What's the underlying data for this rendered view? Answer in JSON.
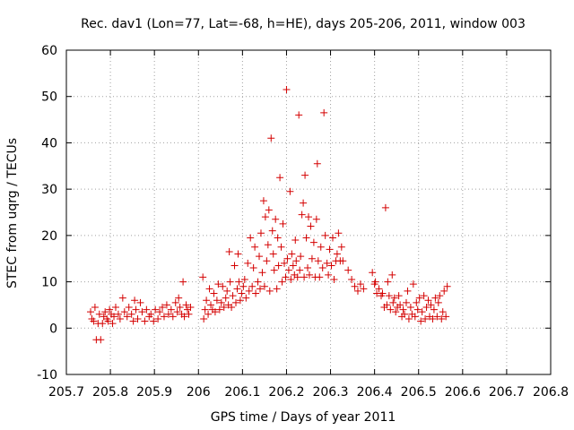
{
  "chart_data": {
    "type": "scatter",
    "title": "Rec. dav1 (Lon=77, Lat=-68, h=HE), days 205-206, 2011, window 003",
    "xlabel": "GPS time / Days of year 2011",
    "ylabel": "STEC from uqrg / TECUs",
    "xlim": [
      205.7,
      206.8
    ],
    "ylim": [
      -10,
      60
    ],
    "xticks": [
      205.7,
      205.8,
      205.9,
      206.0,
      206.1,
      206.2,
      206.3,
      206.4,
      206.5,
      206.6,
      206.7,
      206.8
    ],
    "xtick_labels": [
      "205.7",
      "205.8",
      "205.9",
      "206",
      "206.1",
      "206.2",
      "206.3",
      "206.4",
      "206.5",
      "206.6",
      "206.7",
      "206.8"
    ],
    "yticks": [
      -10,
      0,
      10,
      20,
      30,
      40,
      50,
      60
    ],
    "ytick_labels": [
      "-10",
      "0",
      "10",
      "20",
      "30",
      "40",
      "50",
      "60"
    ],
    "grid": true,
    "marker": "+",
    "color": "#d40000",
    "points": [
      [
        205.755,
        3.5
      ],
      [
        205.758,
        2.0
      ],
      [
        205.762,
        1.5
      ],
      [
        205.765,
        4.5
      ],
      [
        205.768,
        -2.5
      ],
      [
        205.772,
        1.0
      ],
      [
        205.775,
        3.0
      ],
      [
        205.778,
        -2.5
      ],
      [
        205.782,
        1.0
      ],
      [
        205.785,
        2.5
      ],
      [
        205.788,
        3.5
      ],
      [
        205.792,
        2.0
      ],
      [
        205.795,
        1.5
      ],
      [
        205.798,
        4.0
      ],
      [
        205.802,
        3.0
      ],
      [
        205.805,
        1.0
      ],
      [
        205.808,
        2.5
      ],
      [
        205.812,
        4.5
      ],
      [
        205.818,
        3.0
      ],
      [
        205.822,
        2.0
      ],
      [
        205.828,
        6.5
      ],
      [
        205.832,
        3.5
      ],
      [
        205.838,
        2.5
      ],
      [
        205.842,
        4.5
      ],
      [
        205.848,
        3.0
      ],
      [
        205.852,
        1.5
      ],
      [
        205.855,
        6.0
      ],
      [
        205.858,
        4.0
      ],
      [
        205.862,
        2.0
      ],
      [
        205.868,
        5.5
      ],
      [
        205.872,
        3.5
      ],
      [
        205.878,
        1.5
      ],
      [
        205.882,
        4.0
      ],
      [
        205.888,
        2.5
      ],
      [
        205.892,
        3.0
      ],
      [
        205.898,
        1.5
      ],
      [
        205.902,
        4.0
      ],
      [
        205.908,
        2.0
      ],
      [
        205.912,
        3.5
      ],
      [
        205.918,
        4.5
      ],
      [
        205.922,
        2.5
      ],
      [
        205.928,
        5.0
      ],
      [
        205.932,
        3.0
      ],
      [
        205.938,
        4.0
      ],
      [
        205.942,
        2.5
      ],
      [
        205.948,
        5.5
      ],
      [
        205.952,
        3.5
      ],
      [
        205.955,
        6.5
      ],
      [
        205.958,
        4.5
      ],
      [
        205.962,
        3.0
      ],
      [
        205.965,
        10.0
      ],
      [
        205.968,
        2.5
      ],
      [
        205.972,
        5.0
      ],
      [
        205.975,
        4.0
      ],
      [
        205.978,
        3.0
      ],
      [
        205.982,
        4.5
      ],
      [
        206.01,
        11.0
      ],
      [
        206.012,
        2.0
      ],
      [
        206.015,
        4.0
      ],
      [
        206.018,
        6.0
      ],
      [
        206.022,
        3.0
      ],
      [
        206.025,
        8.5
      ],
      [
        206.028,
        5.0
      ],
      [
        206.032,
        4.0
      ],
      [
        206.035,
        7.5
      ],
      [
        206.038,
        3.5
      ],
      [
        206.042,
        6.0
      ],
      [
        206.045,
        9.5
      ],
      [
        206.048,
        4.0
      ],
      [
        206.052,
        5.5
      ],
      [
        206.055,
        9.0
      ],
      [
        206.058,
        4.5
      ],
      [
        206.062,
        6.5
      ],
      [
        206.065,
        8.0
      ],
      [
        206.068,
        5.0
      ],
      [
        206.07,
        16.5
      ],
      [
        206.072,
        10.0
      ],
      [
        206.075,
        4.5
      ],
      [
        206.078,
        7.0
      ],
      [
        206.082,
        13.5
      ],
      [
        206.085,
        5.5
      ],
      [
        206.088,
        8.5
      ],
      [
        206.09,
        16.0
      ],
      [
        206.092,
        10.0
      ],
      [
        206.095,
        6.0
      ],
      [
        206.098,
        7.5
      ],
      [
        206.102,
        9.0
      ],
      [
        206.105,
        10.5
      ],
      [
        206.108,
        6.5
      ],
      [
        206.112,
        14.0
      ],
      [
        206.115,
        8.0
      ],
      [
        206.118,
        19.5
      ],
      [
        206.122,
        9.0
      ],
      [
        206.125,
        13.0
      ],
      [
        206.128,
        17.5
      ],
      [
        206.13,
        7.5
      ],
      [
        206.135,
        10.0
      ],
      [
        206.138,
        15.5
      ],
      [
        206.14,
        8.5
      ],
      [
        206.142,
        20.5
      ],
      [
        206.145,
        12.0
      ],
      [
        206.148,
        27.5
      ],
      [
        206.15,
        9.0
      ],
      [
        206.152,
        24.0
      ],
      [
        206.155,
        14.5
      ],
      [
        206.158,
        18.0
      ],
      [
        206.16,
        25.5
      ],
      [
        206.162,
        8.0
      ],
      [
        206.165,
        41.0
      ],
      [
        206.168,
        21.0
      ],
      [
        206.17,
        16.0
      ],
      [
        206.172,
        12.5
      ],
      [
        206.175,
        23.5
      ],
      [
        206.178,
        8.5
      ],
      [
        206.18,
        19.5
      ],
      [
        206.182,
        13.5
      ],
      [
        206.185,
        32.5
      ],
      [
        206.188,
        17.5
      ],
      [
        206.19,
        10.0
      ],
      [
        206.192,
        22.5
      ],
      [
        206.195,
        14.0
      ],
      [
        206.198,
        11.0
      ],
      [
        206.2,
        51.5
      ],
      [
        206.202,
        15.0
      ],
      [
        206.205,
        12.5
      ],
      [
        206.208,
        29.5
      ],
      [
        206.21,
        10.5
      ],
      [
        206.212,
        16.0
      ],
      [
        206.215,
        13.5
      ],
      [
        206.218,
        11.5
      ],
      [
        206.22,
        19.0
      ],
      [
        206.222,
        14.5
      ],
      [
        206.225,
        11.0
      ],
      [
        206.228,
        46.0
      ],
      [
        206.23,
        12.5
      ],
      [
        206.232,
        15.5
      ],
      [
        206.235,
        24.5
      ],
      [
        206.238,
        27.0
      ],
      [
        206.24,
        11.0
      ],
      [
        206.242,
        33.0
      ],
      [
        206.245,
        19.5
      ],
      [
        206.248,
        13.0
      ],
      [
        206.25,
        24.0
      ],
      [
        206.252,
        11.5
      ],
      [
        206.255,
        22.0
      ],
      [
        206.258,
        15.0
      ],
      [
        206.262,
        18.5
      ],
      [
        206.265,
        11.0
      ],
      [
        206.268,
        23.5
      ],
      [
        206.27,
        35.5
      ],
      [
        206.272,
        14.5
      ],
      [
        206.275,
        11.0
      ],
      [
        206.278,
        17.5
      ],
      [
        206.282,
        13.0
      ],
      [
        206.285,
        46.5
      ],
      [
        206.288,
        20.0
      ],
      [
        206.292,
        14.0
      ],
      [
        206.295,
        11.5
      ],
      [
        206.298,
        17.0
      ],
      [
        206.302,
        13.5
      ],
      [
        206.305,
        19.5
      ],
      [
        206.308,
        10.5
      ],
      [
        206.312,
        14.5
      ],
      [
        206.315,
        16.0
      ],
      [
        206.318,
        20.5
      ],
      [
        206.322,
        14.5
      ],
      [
        206.325,
        17.5
      ],
      [
        206.328,
        14.5
      ],
      [
        206.34,
        12.5
      ],
      [
        206.348,
        10.5
      ],
      [
        206.355,
        9.0
      ],
      [
        206.362,
        8.0
      ],
      [
        206.368,
        9.5
      ],
      [
        206.375,
        8.5
      ],
      [
        206.395,
        12.0
      ],
      [
        206.4,
        9.5
      ],
      [
        206.402,
        10.0
      ],
      [
        206.405,
        7.5
      ],
      [
        206.41,
        8.5
      ],
      [
        206.415,
        7.0
      ],
      [
        206.418,
        7.5
      ],
      [
        206.422,
        4.5
      ],
      [
        206.425,
        26.0
      ],
      [
        206.428,
        5.0
      ],
      [
        206.43,
        10.0
      ],
      [
        206.433,
        7.0
      ],
      [
        206.436,
        4.0
      ],
      [
        206.44,
        11.5
      ],
      [
        206.442,
        5.5
      ],
      [
        206.445,
        6.5
      ],
      [
        206.448,
        3.5
      ],
      [
        206.452,
        4.5
      ],
      [
        206.455,
        7.0
      ],
      [
        206.458,
        5.0
      ],
      [
        206.462,
        2.5
      ],
      [
        206.465,
        4.0
      ],
      [
        206.468,
        3.0
      ],
      [
        206.472,
        5.5
      ],
      [
        206.475,
        8.0
      ],
      [
        206.478,
        2.0
      ],
      [
        206.482,
        4.5
      ],
      [
        206.485,
        3.0
      ],
      [
        206.488,
        9.5
      ],
      [
        206.492,
        2.5
      ],
      [
        206.495,
        5.5
      ],
      [
        206.498,
        4.0
      ],
      [
        206.502,
        6.5
      ],
      [
        206.505,
        1.5
      ],
      [
        206.508,
        3.5
      ],
      [
        206.512,
        7.0
      ],
      [
        206.515,
        2.0
      ],
      [
        206.518,
        4.5
      ],
      [
        206.522,
        6.0
      ],
      [
        206.525,
        2.5
      ],
      [
        206.528,
        5.0
      ],
      [
        206.532,
        2.0
      ],
      [
        206.535,
        4.0
      ],
      [
        206.538,
        6.5
      ],
      [
        206.542,
        2.5
      ],
      [
        206.545,
        5.5
      ],
      [
        206.548,
        7.0
      ],
      [
        206.552,
        2.0
      ],
      [
        206.555,
        3.5
      ],
      [
        206.558,
        8.0
      ],
      [
        206.562,
        2.5
      ],
      [
        206.565,
        9.0
      ]
    ]
  }
}
